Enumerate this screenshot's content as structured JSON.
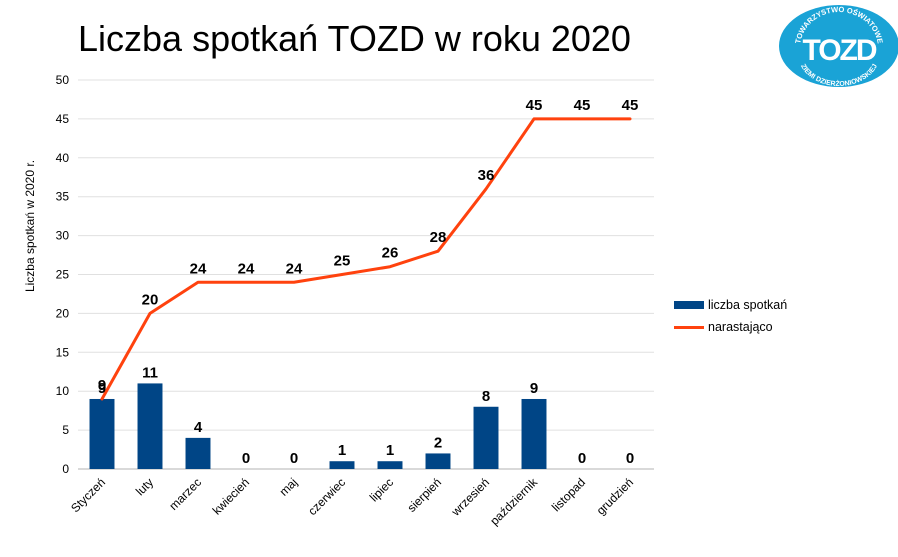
{
  "title": "Liczba spotkań TOZD w roku 2020",
  "logo": {
    "text_top": "TOWARZYSTWO OŚWIATOWE",
    "text_bottom": "ZIEMI DZIERŻONIOWSKIEJ",
    "mark": "TOZD",
    "color": "#1aa3d6"
  },
  "colors": {
    "bar": "#004586",
    "line": "#ff420e",
    "grid": "#e0e0e0"
  },
  "chart_data": {
    "type": "bar",
    "categories": [
      "Styczeń",
      "luty",
      "marzec",
      "kwiecień",
      "maj",
      "czerwiec",
      "lipiec",
      "sierpień",
      "wrzesień",
      "październik",
      "listopad",
      "grudzień"
    ],
    "series": [
      {
        "name": "liczba spotkań",
        "type": "bar",
        "values": [
          9,
          11,
          4,
          0,
          0,
          1,
          1,
          2,
          8,
          9,
          0,
          0
        ]
      },
      {
        "name": "narastająco",
        "type": "line",
        "values": [
          9,
          20,
          24,
          24,
          24,
          25,
          26,
          28,
          36,
          45,
          45,
          45
        ]
      }
    ],
    "ylabel": "Liczba spotkań w 2020 r.",
    "xlabel": "",
    "ylim": [
      0,
      50
    ],
    "yticks": [
      0,
      5,
      10,
      15,
      20,
      25,
      30,
      35,
      40,
      45,
      50
    ],
    "grid": true,
    "legend": "right"
  }
}
